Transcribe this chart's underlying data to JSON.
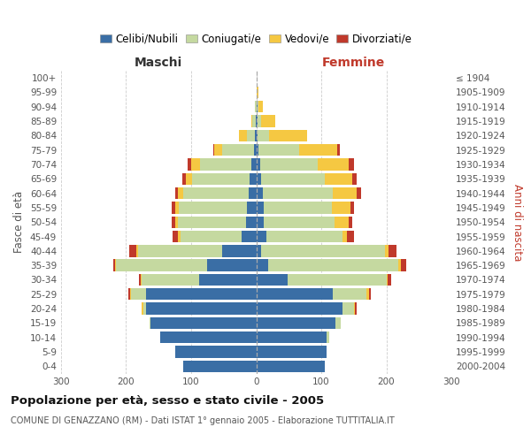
{
  "age_groups": [
    "100+",
    "95-99",
    "90-94",
    "85-89",
    "80-84",
    "75-79",
    "70-74",
    "65-69",
    "60-64",
    "55-59",
    "50-54",
    "45-49",
    "40-44",
    "35-39",
    "30-34",
    "25-29",
    "20-24",
    "15-19",
    "10-14",
    "5-9",
    "0-4"
  ],
  "birth_years": [
    "≤ 1904",
    "1905-1909",
    "1910-1914",
    "1915-1919",
    "1920-1924",
    "1925-1929",
    "1930-1934",
    "1935-1939",
    "1940-1944",
    "1945-1949",
    "1950-1954",
    "1955-1959",
    "1960-1964",
    "1965-1969",
    "1970-1974",
    "1975-1979",
    "1980-1984",
    "1985-1989",
    "1990-1994",
    "1995-1999",
    "2000-2004"
  ],
  "male_celibe": [
    0,
    0,
    0,
    1,
    2,
    4,
    8,
    10,
    12,
    14,
    16,
    22,
    52,
    75,
    88,
    170,
    170,
    162,
    148,
    125,
    112
  ],
  "male_coniugato": [
    0,
    0,
    2,
    5,
    12,
    48,
    78,
    88,
    100,
    105,
    105,
    95,
    130,
    140,
    88,
    22,
    4,
    2,
    0,
    0,
    0
  ],
  "male_vedovo": [
    0,
    0,
    0,
    2,
    12,
    12,
    14,
    10,
    8,
    6,
    4,
    3,
    3,
    2,
    2,
    2,
    2,
    0,
    0,
    0,
    0
  ],
  "male_divorziato": [
    0,
    0,
    0,
    0,
    0,
    2,
    5,
    5,
    5,
    5,
    5,
    8,
    10,
    3,
    2,
    2,
    0,
    0,
    0,
    0,
    0
  ],
  "female_celibe": [
    0,
    1,
    2,
    2,
    2,
    4,
    6,
    8,
    10,
    11,
    12,
    16,
    8,
    18,
    48,
    118,
    132,
    122,
    108,
    108,
    106
  ],
  "female_coniugato": [
    0,
    0,
    2,
    5,
    18,
    62,
    88,
    98,
    108,
    106,
    108,
    116,
    190,
    200,
    152,
    52,
    18,
    8,
    4,
    0,
    0
  ],
  "female_vedovo": [
    0,
    2,
    6,
    22,
    58,
    58,
    48,
    42,
    36,
    28,
    22,
    8,
    6,
    4,
    2,
    4,
    2,
    0,
    0,
    0,
    0
  ],
  "female_divorziato": [
    0,
    0,
    0,
    0,
    0,
    5,
    8,
    6,
    7,
    6,
    5,
    10,
    12,
    8,
    5,
    2,
    2,
    0,
    0,
    0,
    0
  ],
  "color_celibe": "#3a6ea5",
  "color_coniugato": "#c5d9a0",
  "color_vedovo": "#f5c842",
  "color_divorziato": "#c0392b",
  "title": "Popolazione per età, sesso e stato civile - 2005",
  "subtitle": "COMUNE DI GENAZZANO (RM) - Dati ISTAT 1° gennaio 2005 - Elaborazione TUTTITALIA.IT",
  "xlabel_left": "Maschi",
  "xlabel_right": "Femmine",
  "ylabel_left": "Fasce di età",
  "ylabel_right": "Anni di nascita",
  "xlim": 300,
  "background_color": "#ffffff",
  "grid_color": "#cccccc",
  "legend_labels": [
    "Celibi/Nubili",
    "Coniugati/e",
    "Vedovi/e",
    "Divorziati/e"
  ]
}
